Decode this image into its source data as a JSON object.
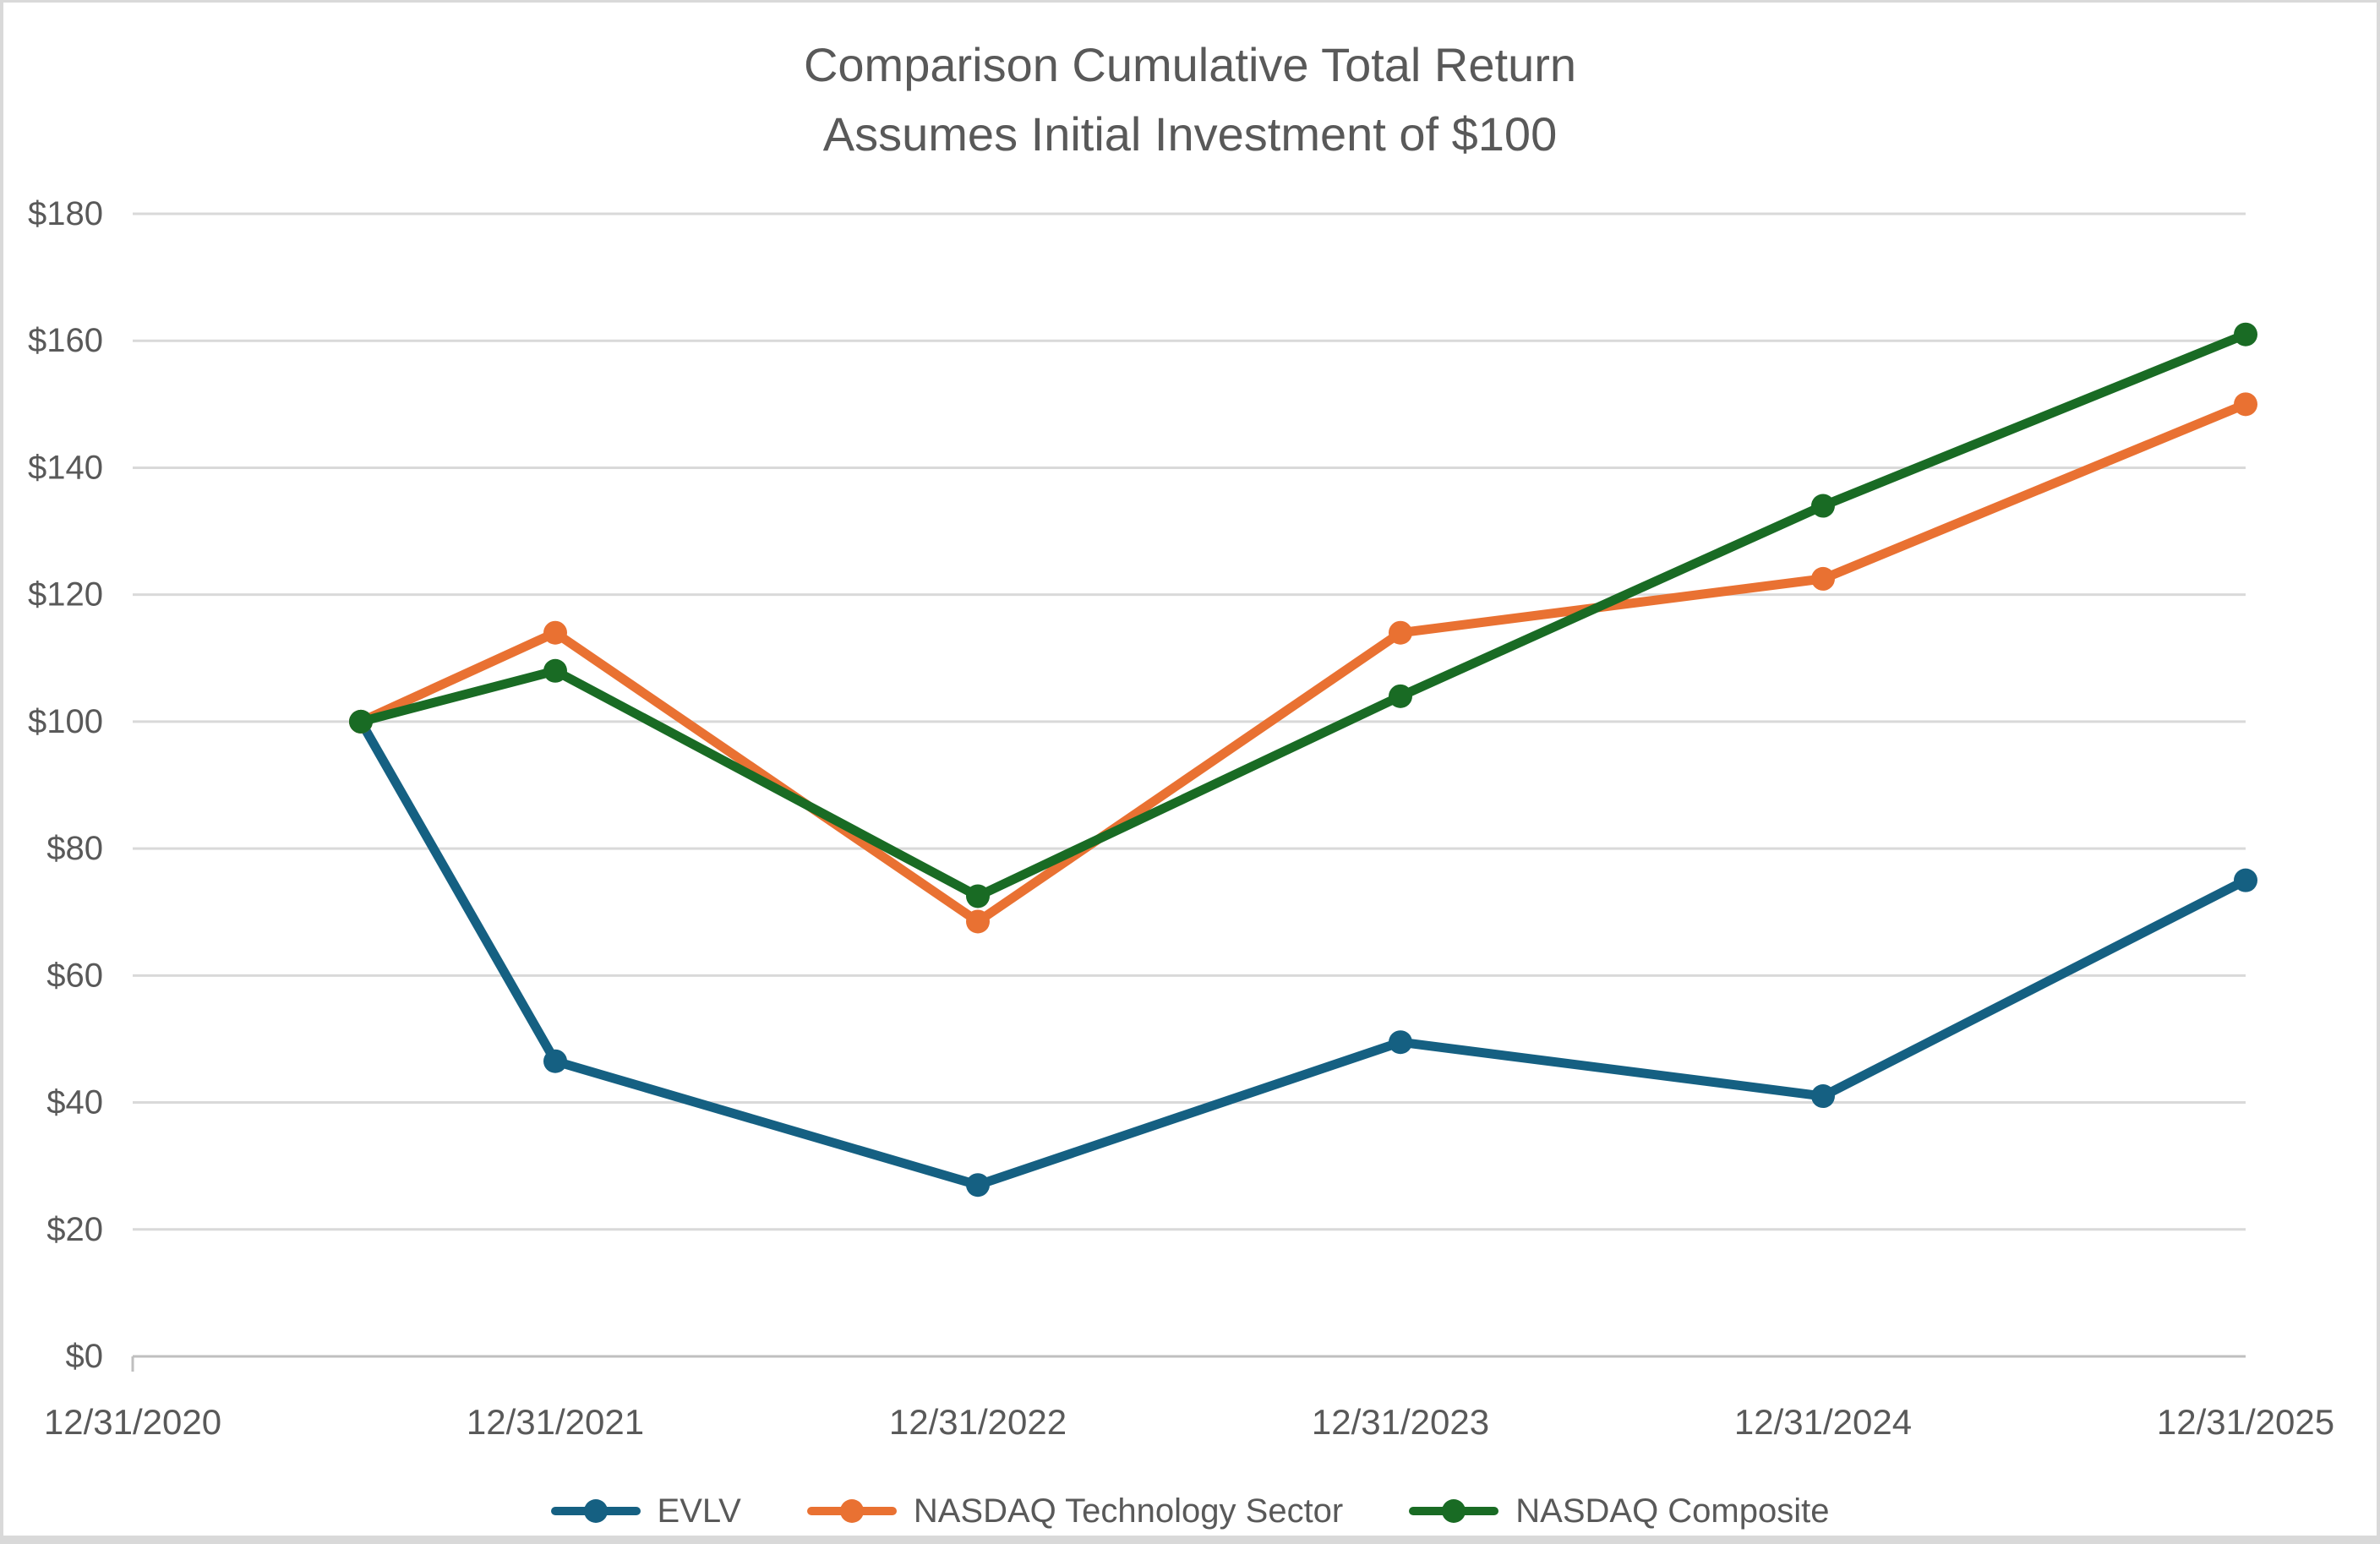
{
  "frame": {
    "background": "#FFFFFF",
    "border_color": "#D9D9D9"
  },
  "title": {
    "line1": "Comparison Cumulative Total Return",
    "line2": "Assumes Initial Investment of $100",
    "color": "#595959"
  },
  "chart_data": {
    "type": "line",
    "title": "Comparison Cumulative Total Return — Assumes Initial Investment of $100",
    "x_tick_labels": [
      "12/31/2020",
      "12/31/2021",
      "12/31/2022",
      "12/31/2023",
      "12/31/2024",
      "12/31/2025"
    ],
    "y_tick_labels": [
      "$0",
      "$20",
      "$40",
      "$60",
      "$80",
      "$100",
      "$120",
      "$140",
      "$160",
      "$180"
    ],
    "y_tick_values": [
      0,
      20,
      40,
      60,
      80,
      100,
      120,
      140,
      160,
      180
    ],
    "ylim": [
      0,
      180
    ],
    "xlim_years_from_first_tick": [
      0,
      5
    ],
    "grid": "horizontal",
    "gridline_color": "#D9D9D9",
    "axis_line_color": "#BFBFBF",
    "label_color": "#595959",
    "legend_position": "bottom",
    "series": [
      {
        "name": "EVLV",
        "color": "#156082",
        "x": [
          0.54,
          1,
          2,
          3,
          4,
          5
        ],
        "values": [
          100,
          46.5,
          27,
          49.5,
          41,
          75
        ]
      },
      {
        "name": "NASDAQ Technology Sector",
        "color": "#E97132",
        "x": [
          0.54,
          1,
          2,
          3,
          4,
          5
        ],
        "values": [
          100,
          114,
          68.5,
          114,
          122.5,
          150
        ]
      },
      {
        "name": "NASDAQ Composite",
        "color": "#196B24",
        "x": [
          0.54,
          1,
          2,
          3,
          4,
          5
        ],
        "values": [
          100,
          108,
          72.5,
          104,
          134,
          161
        ]
      }
    ]
  },
  "legend": {
    "items": [
      {
        "label": "EVLV",
        "color": "#156082"
      },
      {
        "label": "NASDAQ Technology Sector",
        "color": "#E97132"
      },
      {
        "label": "NASDAQ Composite",
        "color": "#196B24"
      }
    ]
  }
}
